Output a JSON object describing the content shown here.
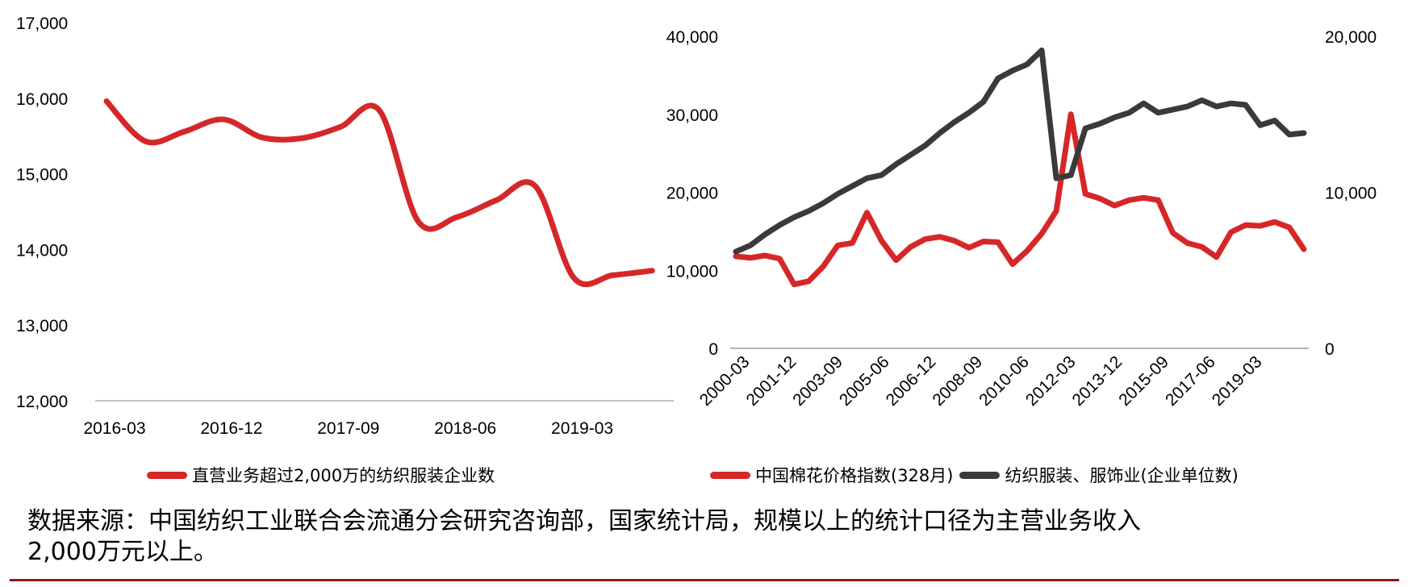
{
  "chart_data": [
    {
      "type": "line",
      "title": "",
      "xlabel": "",
      "ylabel": "",
      "ylim": [
        12000,
        17000
      ],
      "yticks": [
        "17,000",
        "16,000",
        "15,000",
        "14,000",
        "13,000",
        "12,000"
      ],
      "xticks": [
        "2016-03",
        "2016-12",
        "2017-09",
        "2018-06",
        "2019-03"
      ],
      "grid": false,
      "legend_position": "bottom",
      "x": [
        "2016-03",
        "2016-06",
        "2016-09",
        "2016-12",
        "2017-03",
        "2017-06",
        "2017-09",
        "2017-12",
        "2018-03",
        "2018-06",
        "2018-09",
        "2018-12",
        "2019-03",
        "2019-06",
        "2019-09"
      ],
      "series": [
        {
          "name": "直营业务超过2,000万的纺织服装企业数",
          "color": "#d62728",
          "values": [
            15960,
            15430,
            15560,
            15720,
            15480,
            15470,
            15620,
            15840,
            14370,
            14430,
            14650,
            14840,
            13620,
            13660,
            13720
          ]
        }
      ]
    },
    {
      "type": "line",
      "title": "",
      "xlabel": "",
      "ylabel_left": "",
      "ylabel_right": "",
      "ylim_left": [
        0,
        40000
      ],
      "ylim_right": [
        0,
        20000
      ],
      "yticks_left": [
        "40,000",
        "30,000",
        "20,000",
        "10,000",
        "0"
      ],
      "yticks_right": [
        "20,000",
        "10,000",
        "0"
      ],
      "xticks": [
        "2000-03",
        "2001-12",
        "2003-09",
        "2005-06",
        "2006-12",
        "2008-09",
        "2010-06",
        "2012-03",
        "2013-12",
        "2015-09",
        "2017-06",
        "2019-03"
      ],
      "grid": false,
      "legend_position": "bottom",
      "x": [
        "2000-03",
        "2000-09",
        "2001-03",
        "2001-09",
        "2002-03",
        "2002-09",
        "2003-03",
        "2003-09",
        "2004-03",
        "2004-09",
        "2005-03",
        "2005-09",
        "2006-03",
        "2006-09",
        "2007-03",
        "2007-09",
        "2008-03",
        "2008-09",
        "2009-03",
        "2009-09",
        "2010-03",
        "2010-09",
        "2011-03",
        "2011-09",
        "2012-03",
        "2012-09",
        "2013-03",
        "2013-09",
        "2014-03",
        "2014-09",
        "2015-03",
        "2015-09",
        "2016-03",
        "2016-09",
        "2017-03",
        "2017-09",
        "2018-03",
        "2018-09",
        "2019-03",
        "2019-09"
      ],
      "series": [
        {
          "name": "中国棉花价格指数(328月)",
          "axis": "left",
          "color": "#d62728",
          "values": [
            11800,
            11600,
            11900,
            11500,
            8200,
            8600,
            10500,
            13200,
            13500,
            17400,
            13800,
            11300,
            13000,
            14000,
            14300,
            13800,
            12900,
            13700,
            13600,
            10800,
            12500,
            14700,
            17600,
            30000,
            19800,
            19200,
            18300,
            19000,
            19300,
            19000,
            14800,
            13500,
            13000,
            11700,
            14900,
            15800,
            15700,
            16200,
            15500,
            12700
          ]
        },
        {
          "name": "纺织服装、服饰业(企业单位数)",
          "axis": "right",
          "color": "#3a3a3a",
          "values": [
            6200,
            6600,
            7300,
            7900,
            8400,
            8800,
            9300,
            9900,
            10400,
            10900,
            11100,
            11800,
            12400,
            13000,
            13800,
            14500,
            15100,
            15800,
            17300,
            17800,
            18200,
            19100,
            10900,
            11100,
            14100,
            14400,
            14800,
            15100,
            15700,
            15100,
            15300,
            15500,
            15900,
            15500,
            15700,
            15600,
            14300,
            14600,
            13700,
            13800
          ]
        }
      ]
    }
  ],
  "left_chart": {
    "yticks": [
      "17,000",
      "16,000",
      "15,000",
      "14,000",
      "13,000",
      "12,000"
    ],
    "xticks": [
      "2016-03",
      "2016-12",
      "2017-09",
      "2018-06",
      "2019-03"
    ],
    "legend": [
      "直营业务超过2,000万的纺织服装企业数"
    ]
  },
  "right_chart": {
    "yticks_left": [
      "40,000",
      "30,000",
      "20,000",
      "10,000",
      "0"
    ],
    "yticks_right": [
      "20,000",
      "10,000",
      "0"
    ],
    "xticks": [
      "2000-03",
      "2001-12",
      "2003-09",
      "2005-06",
      "2006-12",
      "2008-09",
      "2010-06",
      "2012-03",
      "2013-12",
      "2015-09",
      "2017-06",
      "2019-03"
    ],
    "legend": [
      "中国棉花价格指数(328月)",
      "纺织服装、服饰业(企业单位数)"
    ]
  },
  "colors": {
    "red": "#d62728",
    "dark": "#3a3a3a",
    "axis": "#999999",
    "rule": "#8b1a1a"
  },
  "footnote": {
    "line1": "数据来源：中国纺织工业联合会流通分会研究咨询部，国家统计局，规模以上的统计口径为主营业务收入",
    "line2": "2,000万元以上。"
  }
}
